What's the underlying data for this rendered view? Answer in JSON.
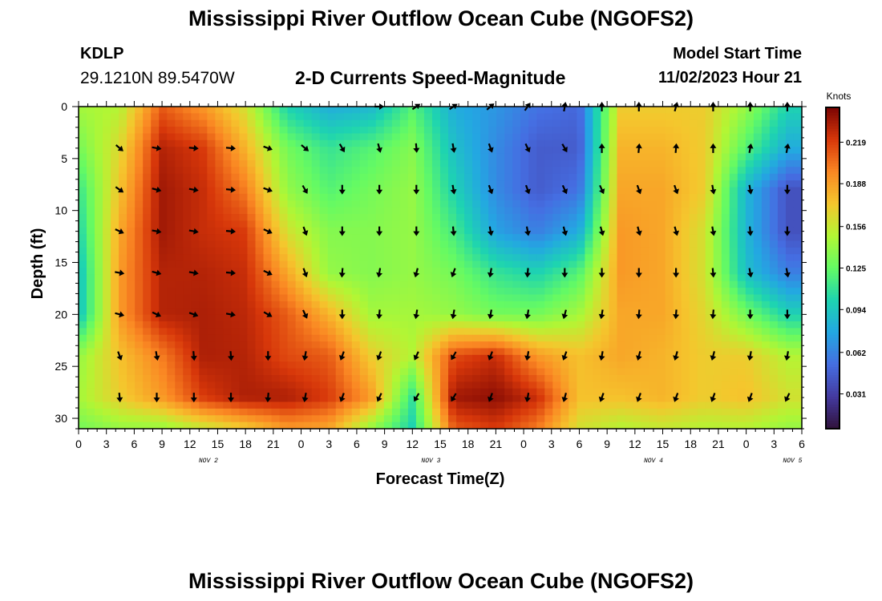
{
  "header": {
    "title": "Mississippi River Outflow Ocean Cube (NGOFS2)",
    "station_id": "KDLP",
    "coordinates": "29.1210N  89.5470W",
    "subtitle": "2-D Currents Speed-Magnitude",
    "model_start_label": "Model Start Time",
    "model_start_value": "11/02/2023 Hour 21"
  },
  "footer": {
    "title": "Mississippi River Outflow Ocean Cube (NGOFS2)"
  },
  "colors": {
    "arrow": "#000000",
    "frame": "#000000"
  },
  "chart_data": {
    "type": "heatmap",
    "title": "2-D Currents Speed-Magnitude",
    "xlabel": "Forecast Time(Z)",
    "ylabel": "Depth (ft)",
    "x_ticks": [
      "0",
      "3",
      "6",
      "9",
      "12",
      "15",
      "18",
      "21",
      "0",
      "3",
      "6",
      "9",
      "12",
      "15",
      "18",
      "21",
      "0",
      "3",
      "6",
      "9",
      "12",
      "15",
      "18",
      "21",
      "0",
      "3",
      "6"
    ],
    "day_labels": [
      {
        "label": "NOV 2",
        "hour": 14
      },
      {
        "label": "NOV 3",
        "hour": 38
      },
      {
        "label": "NOV 4",
        "hour": 62
      },
      {
        "label": "NOV 5",
        "hour": 77
      }
    ],
    "x_range_hours": [
      0,
      78
    ],
    "y_ticks": [
      "0",
      "5",
      "10",
      "15",
      "20",
      "25",
      "30"
    ],
    "y_range_ft": [
      0,
      31
    ],
    "colorbar": {
      "unit": "Knots",
      "ticks": [
        "0.219",
        "0.188",
        "0.156",
        "0.125",
        "0.094",
        "0.062",
        "0.031"
      ],
      "range": [
        0.005,
        0.245
      ]
    },
    "grid_hours": [
      0,
      4.5,
      9,
      13.5,
      18,
      22.5,
      27,
      31.5,
      36,
      40.5,
      45,
      49.5,
      54,
      58.5,
      63,
      67.5,
      72,
      76.5
    ],
    "grid_depths_ft": [
      0,
      4,
      8,
      12,
      16,
      20,
      24,
      28,
      31
    ],
    "values": [
      [
        0.145,
        0.15,
        0.21,
        0.19,
        0.16,
        0.1,
        0.08,
        0.085,
        0.12,
        0.08,
        0.07,
        0.055,
        0.05,
        0.17,
        0.17,
        0.17,
        0.14,
        0.1
      ],
      [
        0.13,
        0.165,
        0.23,
        0.22,
        0.18,
        0.13,
        0.11,
        0.12,
        0.135,
        0.09,
        0.065,
        0.045,
        0.045,
        0.18,
        0.18,
        0.17,
        0.12,
        0.08
      ],
      [
        0.11,
        0.175,
        0.235,
        0.225,
        0.2,
        0.14,
        0.12,
        0.13,
        0.14,
        0.1,
        0.065,
        0.045,
        0.055,
        0.185,
        0.185,
        0.17,
        0.085,
        0.04
      ],
      [
        0.1,
        0.185,
        0.235,
        0.225,
        0.22,
        0.16,
        0.135,
        0.135,
        0.14,
        0.115,
        0.075,
        0.06,
        0.08,
        0.19,
        0.185,
        0.16,
        0.085,
        0.04
      ],
      [
        0.09,
        0.19,
        0.23,
        0.23,
        0.225,
        0.185,
        0.14,
        0.135,
        0.14,
        0.13,
        0.11,
        0.1,
        0.12,
        0.19,
        0.185,
        0.16,
        0.09,
        0.06
      ],
      [
        0.09,
        0.19,
        0.23,
        0.232,
        0.228,
        0.21,
        0.18,
        0.145,
        0.145,
        0.14,
        0.13,
        0.13,
        0.145,
        0.185,
        0.185,
        0.165,
        0.13,
        0.1
      ],
      [
        0.14,
        0.175,
        0.2,
        0.232,
        0.23,
        0.215,
        0.21,
        0.17,
        0.15,
        0.215,
        0.225,
        0.19,
        0.175,
        0.185,
        0.18,
        0.17,
        0.17,
        0.15
      ],
      [
        0.145,
        0.17,
        0.19,
        0.22,
        0.232,
        0.232,
        0.22,
        0.19,
        0.11,
        0.235,
        0.24,
        0.225,
        0.175,
        0.175,
        0.18,
        0.17,
        0.175,
        0.16
      ],
      [
        0.13,
        0.14,
        0.14,
        0.155,
        0.17,
        0.19,
        0.185,
        0.14,
        0.1,
        0.21,
        0.22,
        0.2,
        0.16,
        0.15,
        0.155,
        0.15,
        0.15,
        0.14
      ]
    ],
    "arrow_hours": [
      0,
      4,
      8,
      12,
      16,
      20,
      24,
      28,
      32,
      36,
      40,
      44,
      48,
      52,
      56,
      60,
      64,
      68,
      72,
      76
    ],
    "arrow_depths_ft": [
      0,
      4,
      8,
      12,
      16,
      20,
      24,
      28
    ],
    "arrow_directions_deg": [
      [
        -999,
        -999,
        -999,
        -999,
        -999,
        -999,
        -999,
        -999,
        0,
        35,
        35,
        40,
        55,
        80,
        90,
        90,
        75,
        90,
        90,
        90
      ],
      [
        -999,
        -40,
        -10,
        -5,
        -5,
        -20,
        -40,
        -60,
        -75,
        -85,
        -80,
        -70,
        -65,
        -60,
        90,
        85,
        85,
        90,
        80,
        80
      ],
      [
        -999,
        -35,
        -15,
        -10,
        -5,
        -20,
        -60,
        -90,
        -90,
        -90,
        -80,
        -70,
        -70,
        -65,
        -65,
        -70,
        -70,
        -80,
        -80,
        -90
      ],
      [
        -999,
        -25,
        -10,
        -10,
        -5,
        -25,
        -70,
        -90,
        -90,
        -90,
        -85,
        -80,
        -80,
        -75,
        -75,
        -75,
        -75,
        -80,
        -85,
        -90
      ],
      [
        -999,
        -10,
        -15,
        -10,
        -5,
        -25,
        -70,
        -95,
        -100,
        -105,
        -110,
        -100,
        -95,
        -90,
        -90,
        -90,
        -90,
        -85,
        -80,
        -80
      ],
      [
        -999,
        -15,
        -25,
        -20,
        -10,
        -30,
        -65,
        -90,
        -95,
        -100,
        -100,
        -100,
        -100,
        -105,
        -100,
        -95,
        -95,
        -95,
        -90,
        -90
      ],
      [
        -999,
        -70,
        -80,
        -85,
        -85,
        -90,
        -100,
        -110,
        -110,
        -115,
        -120,
        -110,
        -100,
        -110,
        -100,
        -105,
        -105,
        -105,
        -100,
        -100
      ],
      [
        -999,
        -85,
        -90,
        -90,
        -90,
        -95,
        -100,
        -110,
        -115,
        -120,
        -120,
        -110,
        -100,
        -105,
        -110,
        -110,
        -110,
        -110,
        -110,
        -115
      ]
    ]
  }
}
